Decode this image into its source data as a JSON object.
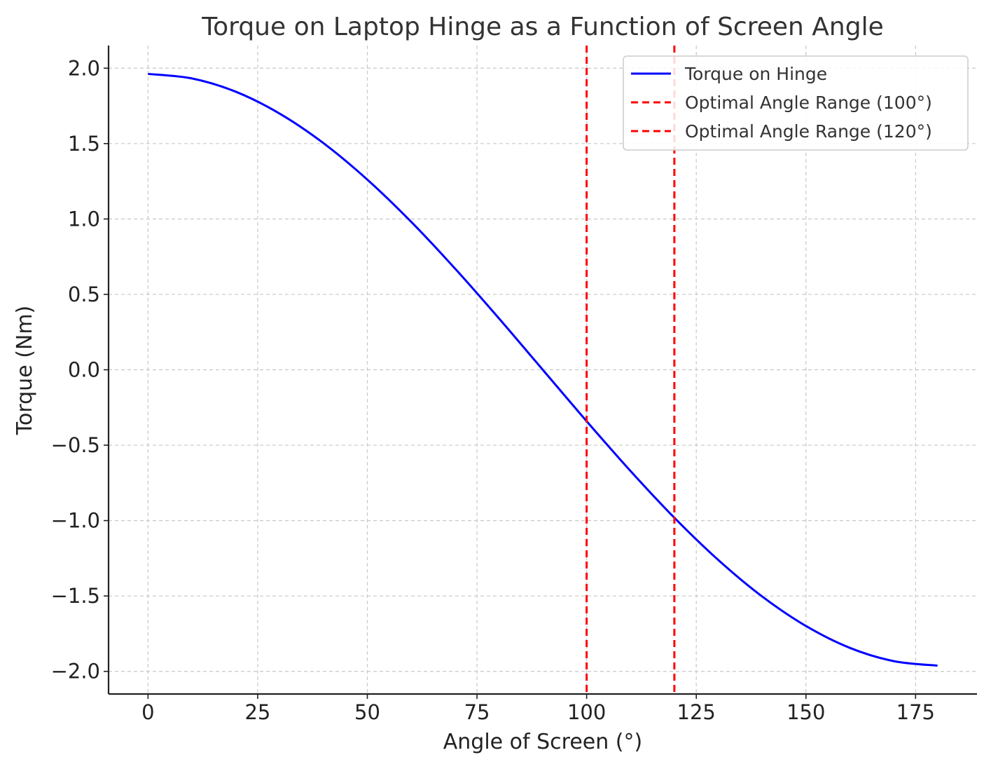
{
  "chart_data": {
    "type": "line",
    "title": "Torque on Laptop Hinge as a Function of Screen Angle",
    "xlabel": "Angle of Screen (°)",
    "ylabel": "Torque (Nm)",
    "xlim": [
      -9,
      189
    ],
    "ylim": [
      -2.15,
      2.15
    ],
    "xticks": [
      0,
      25,
      50,
      75,
      100,
      125,
      150,
      175
    ],
    "xtick_labels": [
      "0",
      "25",
      "50",
      "75",
      "100",
      "125",
      "150",
      "175"
    ],
    "yticks": [
      2.0,
      1.5,
      1.0,
      0.5,
      0.0,
      -0.5,
      -1.0,
      -1.5,
      -2.0
    ],
    "ytick_labels": [
      "2.0",
      "1.5",
      "1.0",
      "0.5",
      "0.0",
      "−0.5",
      "−1.0",
      "−1.5",
      "−2.0"
    ],
    "grid": true,
    "legend_position": "top-right",
    "series": [
      {
        "name": "Torque on Hinge",
        "color": "#0000ff",
        "style": "solid",
        "x": [
          0,
          10,
          20,
          30,
          40,
          50,
          60,
          70,
          80,
          90,
          100,
          110,
          120,
          130,
          140,
          150,
          160,
          170,
          180
        ],
        "y": [
          1.962,
          1.932,
          1.844,
          1.699,
          1.503,
          1.261,
          0.981,
          0.671,
          0.341,
          0.0,
          -0.341,
          -0.671,
          -0.981,
          -1.261,
          -1.503,
          -1.699,
          -1.844,
          -1.932,
          -1.962
        ]
      }
    ],
    "vlines": [
      {
        "name": "Optimal Angle Range (100°)",
        "x": 100,
        "color": "#ff0000",
        "style": "dashed"
      },
      {
        "name": "Optimal Angle Range (120°)",
        "x": 120,
        "color": "#ff0000",
        "style": "dashed"
      }
    ]
  }
}
